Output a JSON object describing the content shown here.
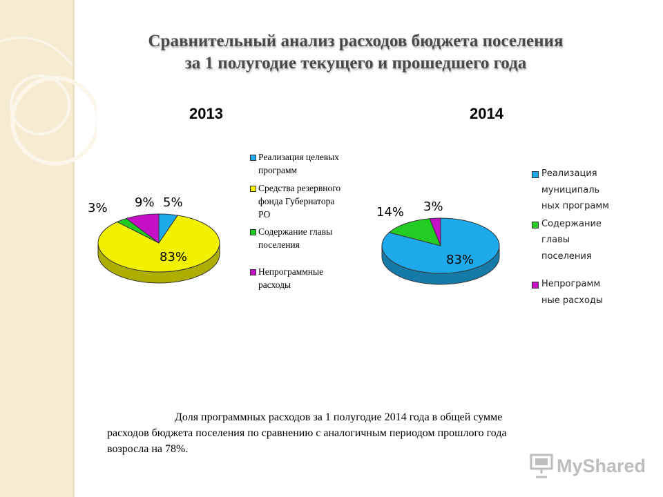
{
  "title": {
    "line1": "Сравнительный анализ расходов бюджета поселения",
    "line2": "за 1 полугодие текущего и прошедшего года"
  },
  "chart_data": [
    {
      "type": "pie",
      "title": "2013",
      "slices": [
        {
          "name": "Реализация целевых программ",
          "value": 5,
          "label": "5%",
          "color": "#1eaaea"
        },
        {
          "name": "Средства резервного фонда Губернатора РО",
          "value": 83,
          "label": "83%",
          "color": "#f2f200"
        },
        {
          "name": "Содержание главы поселения",
          "value": 3,
          "label": "3%",
          "color": "#22cc22"
        },
        {
          "name": "Непрограммные расходы",
          "value": 9,
          "label": "9%",
          "color": "#c510c8"
        }
      ],
      "legend": [
        "Реализация целевых программ",
        "Средства резервного фонда Губернатора РО",
        "Содержание главы поселения",
        "Непрограммные расходы"
      ],
      "legend_position": "right"
    },
    {
      "type": "pie",
      "title": "2014",
      "slices": [
        {
          "name": "Реализация муниципальных программ",
          "value": 83,
          "label": "83%",
          "color": "#1eaaea"
        },
        {
          "name": "Содержание главы поселения",
          "value": 14,
          "label": "14%",
          "color": "#22cc22"
        },
        {
          "name": "Непрограммные расходы",
          "value": 3,
          "label": "3%",
          "color": "#c510c8"
        }
      ],
      "legend": [
        "Реализация муниципаль ных программ",
        "Содержание главы поселения",
        "Непрограмм ные расходы"
      ],
      "legend_position": "right"
    }
  ],
  "note": {
    "line1": "Доля программных расходов за 1 полугодие 2014 года в общей сумме",
    "line2": "расходов бюджета поселения по сравнению с аналогичным периодом прошлого года",
    "line3": "возросла на  78%."
  },
  "watermark": "MyShared"
}
